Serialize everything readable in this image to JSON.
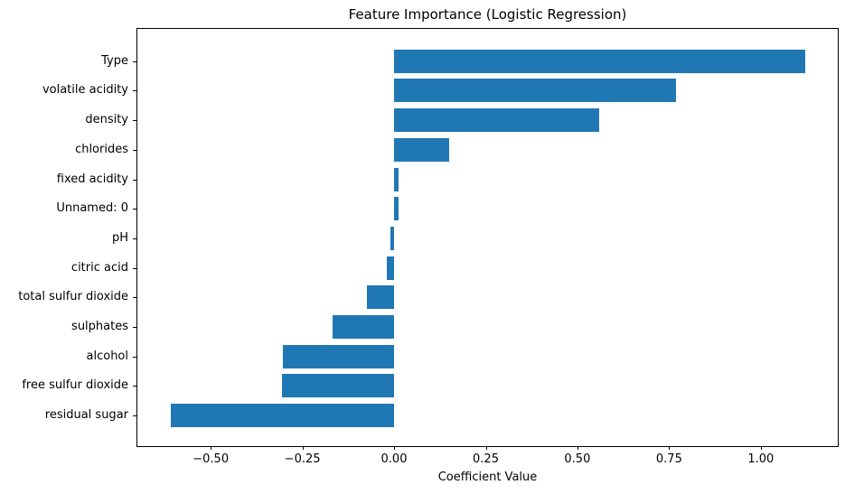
{
  "chart_data": {
    "type": "bar",
    "orientation": "horizontal",
    "title": "Feature Importance (Logistic Regression)",
    "xlabel": "Coefficient Value",
    "ylabel": "",
    "categories": [
      "Type",
      "volatile acidity",
      "density",
      "chlorides",
      "fixed acidity",
      "Unnamed: 0",
      "pH",
      "citric acid",
      "total sulfur dioxide",
      "sulphates",
      "alcohol",
      "free sulfur dioxide",
      "residual sugar"
    ],
    "values": [
      1.12,
      0.77,
      0.56,
      0.15,
      0.013,
      0.012,
      -0.011,
      -0.02,
      -0.073,
      -0.167,
      -0.304,
      -0.306,
      -0.609
    ],
    "xlim": [
      -0.7,
      1.21
    ],
    "x_ticks": [
      -0.5,
      -0.25,
      0.0,
      0.25,
      0.5,
      0.75,
      1.0
    ],
    "x_tick_labels": [
      "−0.50",
      "−0.25",
      "0.00",
      "0.25",
      "0.50",
      "0.75",
      "1.00"
    ],
    "bar_color": "#1f77b4",
    "grid": false,
    "legend": null
  }
}
